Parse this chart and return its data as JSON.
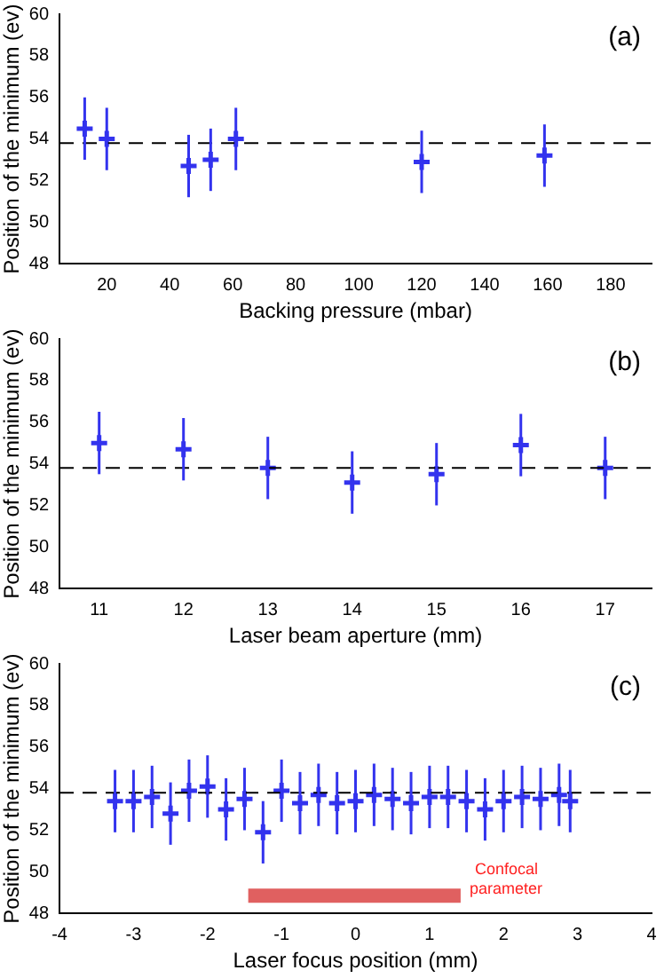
{
  "chart_data": [
    {
      "type": "scatter",
      "xlabel": "Backing pressure (mbar)",
      "ylabel": "Position of the minimum (ev)",
      "annotations": [
        "(a)"
      ],
      "xlim": [
        5,
        193
      ],
      "xticks": [
        20,
        40,
        60,
        80,
        100,
        120,
        140,
        160,
        180
      ],
      "ylim": [
        48,
        60
      ],
      "yticks": [
        48,
        50,
        52,
        54,
        56,
        58,
        60
      ],
      "grid": false,
      "legend": false,
      "marker": "cross",
      "x": [
        13,
        20,
        46,
        53,
        61,
        120,
        159
      ],
      "series": [
        {
          "color": "#3333ee",
          "values": [
            54.5,
            54.0,
            52.7,
            53.0,
            54.0,
            52.9,
            53.2
          ],
          "errors": [
            1.5,
            1.5,
            1.5,
            1.5,
            1.5,
            1.5,
            1.5
          ]
        }
      ],
      "ref_lines": [
        {
          "axis": "y",
          "value": 53.8,
          "color": "#000000",
          "line_style": "dashed"
        }
      ]
    },
    {
      "type": "scatter",
      "xlabel": "Laser beam aperture (mm)",
      "ylabel": "Position of the minimum (ev)",
      "annotations": [
        "(b)"
      ],
      "xlim": [
        10.53,
        17.55
      ],
      "xticks": [
        11,
        12,
        13,
        14,
        15,
        16,
        17
      ],
      "ylim": [
        48,
        60
      ],
      "yticks": [
        48,
        50,
        52,
        54,
        56,
        58,
        60
      ],
      "grid": false,
      "legend": false,
      "marker": "cross",
      "x": [
        11,
        12,
        13,
        14,
        15,
        16,
        17
      ],
      "series": [
        {
          "color": "#3333ee",
          "values": [
            55.0,
            54.7,
            53.8,
            53.1,
            53.5,
            54.9,
            53.8
          ],
          "errors": [
            1.5,
            1.5,
            1.5,
            1.5,
            1.5,
            1.5,
            1.5
          ]
        }
      ],
      "ref_lines": [
        {
          "axis": "y",
          "value": 53.8,
          "color": "#000000",
          "line_style": "dashed"
        }
      ]
    },
    {
      "type": "scatter",
      "xlabel": "Laser focus position (mm)",
      "ylabel": "Position of the minimum (ev)",
      "annotations": [
        "(c)"
      ],
      "xlim": [
        -4,
        4
      ],
      "xticks": [
        -4,
        -3,
        -2,
        -1,
        0,
        1,
        2,
        3,
        4
      ],
      "ylim": [
        48,
        60
      ],
      "yticks": [
        48,
        50,
        52,
        54,
        56,
        58,
        60
      ],
      "grid": false,
      "legend": false,
      "marker": "cross",
      "x": [
        -3.25,
        -3,
        -2.75,
        -2.5,
        -2.25,
        -2,
        -1.75,
        -1.5,
        -1.25,
        -1,
        -0.75,
        -0.5,
        -0.25,
        0,
        0.25,
        0.5,
        0.75,
        1,
        1.25,
        1.5,
        1.75,
        2,
        2.25,
        2.5,
        2.75,
        2.9
      ],
      "series": [
        {
          "color": "#3333ee",
          "values": [
            53.4,
            53.4,
            53.6,
            52.8,
            53.9,
            54.1,
            53.0,
            53.5,
            51.9,
            53.9,
            53.3,
            53.7,
            53.3,
            53.4,
            53.7,
            53.5,
            53.3,
            53.6,
            53.6,
            53.4,
            53.0,
            53.4,
            53.6,
            53.5,
            53.7,
            53.4
          ],
          "errors": [
            1.5,
            1.5,
            1.5,
            1.5,
            1.5,
            1.5,
            1.5,
            1.5,
            1.5,
            1.5,
            1.5,
            1.5,
            1.5,
            1.5,
            1.5,
            1.5,
            1.5,
            1.5,
            1.5,
            1.5,
            1.5,
            1.5,
            1.5,
            1.5,
            1.5,
            1.5
          ]
        }
      ],
      "ref_lines": [
        {
          "axis": "y",
          "value": 53.8,
          "color": "#000000",
          "line_style": "dashed"
        }
      ],
      "bands": [
        {
          "axis": "x",
          "from": -1.45,
          "to": 1.42,
          "label": "Confocal parameter",
          "color": "#e06060"
        }
      ]
    }
  ]
}
